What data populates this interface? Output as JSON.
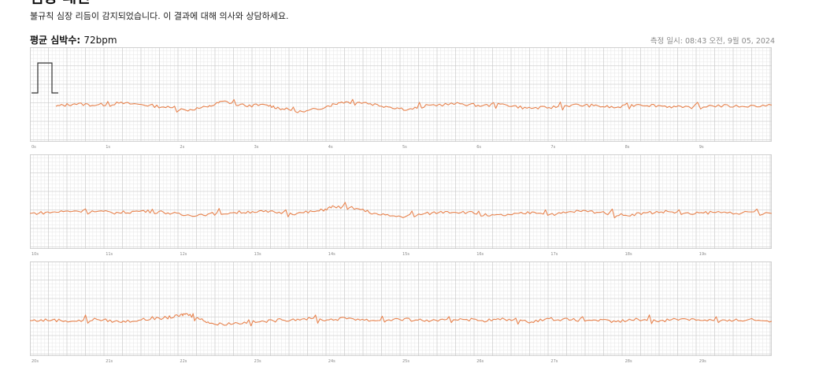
{
  "header": {
    "title": "심장 패턴",
    "subtitle": "불규칙 심장 리듬이 감지되었습니다. 이 결과에 대해 의사와 상담하세요.",
    "avg_label": "평균 심박수:",
    "avg_value": "72bpm",
    "measured_at": "측정 일시: 08:43 오전, 9월 05, 2024"
  },
  "colors": {
    "trace": "#e8834e",
    "grid_minor": "#e6e6e6",
    "grid_major": "#c9c9c9",
    "calibration": "#333333"
  },
  "chart_data": {
    "type": "line",
    "title": "",
    "xlabel": "",
    "ylabel": "",
    "grid": true,
    "strips": [
      {
        "ticks": [
          "0s",
          "1s",
          "2s",
          "3s",
          "4s",
          "5s",
          "6s",
          "7s",
          "8s",
          "9s"
        ],
        "xlim": [
          0,
          10
        ]
      },
      {
        "ticks": [
          "10s",
          "11s",
          "12s",
          "13s",
          "14s",
          "15s",
          "16s",
          "17s",
          "18s",
          "19s"
        ],
        "xlim": [
          10,
          20
        ]
      },
      {
        "ticks": [
          "20s",
          "21s",
          "22s",
          "23s",
          "24s",
          "25s",
          "26s",
          "27s",
          "28s",
          "29s"
        ],
        "xlim": [
          20,
          30
        ]
      }
    ],
    "series": [
      {
        "values": [
          [
            0.35,
            0.0
          ],
          [
            0.6,
            0.4
          ],
          [
            0.9,
            0.2
          ],
          [
            1.2,
            0.5
          ],
          [
            1.5,
            0.3
          ],
          [
            1.8,
            -0.1
          ],
          [
            2.1,
            -0.6
          ],
          [
            2.4,
            -0.1
          ],
          [
            2.6,
            0.8
          ],
          [
            2.9,
            0.1
          ],
          [
            3.2,
            0.2
          ],
          [
            3.4,
            -0.4
          ],
          [
            3.7,
            -0.9
          ],
          [
            4.0,
            0.0
          ],
          [
            4.2,
            0.7
          ],
          [
            4.5,
            0.6
          ],
          [
            4.8,
            0.0
          ],
          [
            5.1,
            -0.5
          ],
          [
            5.4,
            0.2
          ],
          [
            5.8,
            0.4
          ],
          [
            6.1,
            0.1
          ],
          [
            6.4,
            0.3
          ],
          [
            6.7,
            -0.3
          ],
          [
            7.0,
            -0.2
          ],
          [
            7.3,
            0.2
          ],
          [
            7.6,
            0.1
          ],
          [
            7.9,
            -0.2
          ],
          [
            8.2,
            0.3
          ],
          [
            8.5,
            0.1
          ],
          [
            8.8,
            -0.2
          ],
          [
            9.2,
            0.1
          ],
          [
            9.6,
            0.0
          ],
          [
            10.0,
            0.2
          ]
        ]
      },
      {
        "values": [
          [
            10.0,
            0.0
          ],
          [
            10.3,
            0.2
          ],
          [
            10.6,
            0.4
          ],
          [
            10.9,
            0.3
          ],
          [
            11.2,
            0.1
          ],
          [
            11.5,
            0.4
          ],
          [
            11.8,
            0.2
          ],
          [
            12.1,
            -0.3
          ],
          [
            12.4,
            -0.1
          ],
          [
            12.7,
            0.1
          ],
          [
            13.0,
            0.3
          ],
          [
            13.3,
            0.2
          ],
          [
            13.6,
            0.0
          ],
          [
            13.9,
            0.4
          ],
          [
            14.1,
            1.1
          ],
          [
            14.4,
            0.8
          ],
          [
            14.7,
            -0.2
          ],
          [
            15.0,
            -0.5
          ],
          [
            15.3,
            -0.1
          ],
          [
            15.6,
            0.3
          ],
          [
            15.9,
            0.2
          ],
          [
            16.2,
            -0.4
          ],
          [
            16.5,
            -0.2
          ],
          [
            16.8,
            0.2
          ],
          [
            17.1,
            -0.1
          ],
          [
            17.4,
            0.4
          ],
          [
            17.7,
            0.2
          ],
          [
            18.0,
            -0.3
          ],
          [
            18.3,
            0.1
          ],
          [
            18.6,
            0.3
          ],
          [
            18.9,
            -0.1
          ],
          [
            19.2,
            0.2
          ],
          [
            19.6,
            0.1
          ],
          [
            20.0,
            0.0
          ]
        ]
      },
      {
        "values": [
          [
            20.0,
            0.0
          ],
          [
            20.3,
            0.1
          ],
          [
            20.6,
            -0.1
          ],
          [
            20.9,
            0.2
          ],
          [
            21.2,
            -0.2
          ],
          [
            21.5,
            0.1
          ],
          [
            21.8,
            0.4
          ],
          [
            22.0,
            0.7
          ],
          [
            22.1,
            1.1
          ],
          [
            22.3,
            0.2
          ],
          [
            22.5,
            -0.6
          ],
          [
            22.8,
            -0.4
          ],
          [
            23.1,
            -0.2
          ],
          [
            23.4,
            0.1
          ],
          [
            23.7,
            0.3
          ],
          [
            24.0,
            0.1
          ],
          [
            24.3,
            0.4
          ],
          [
            24.6,
            0.0
          ],
          [
            24.9,
            0.2
          ],
          [
            25.2,
            0.1
          ],
          [
            25.5,
            -0.1
          ],
          [
            25.8,
            0.3
          ],
          [
            26.1,
            0.0
          ],
          [
            26.4,
            0.2
          ],
          [
            26.7,
            -0.2
          ],
          [
            27.0,
            0.3
          ],
          [
            27.3,
            0.1
          ],
          [
            27.6,
            0.1
          ],
          [
            27.9,
            -0.2
          ],
          [
            28.2,
            0.2
          ],
          [
            28.5,
            0.0
          ],
          [
            28.8,
            0.3
          ],
          [
            29.1,
            0.1
          ],
          [
            29.4,
            -0.1
          ],
          [
            29.7,
            0.2
          ],
          [
            30.0,
            -0.1
          ]
        ]
      }
    ]
  }
}
